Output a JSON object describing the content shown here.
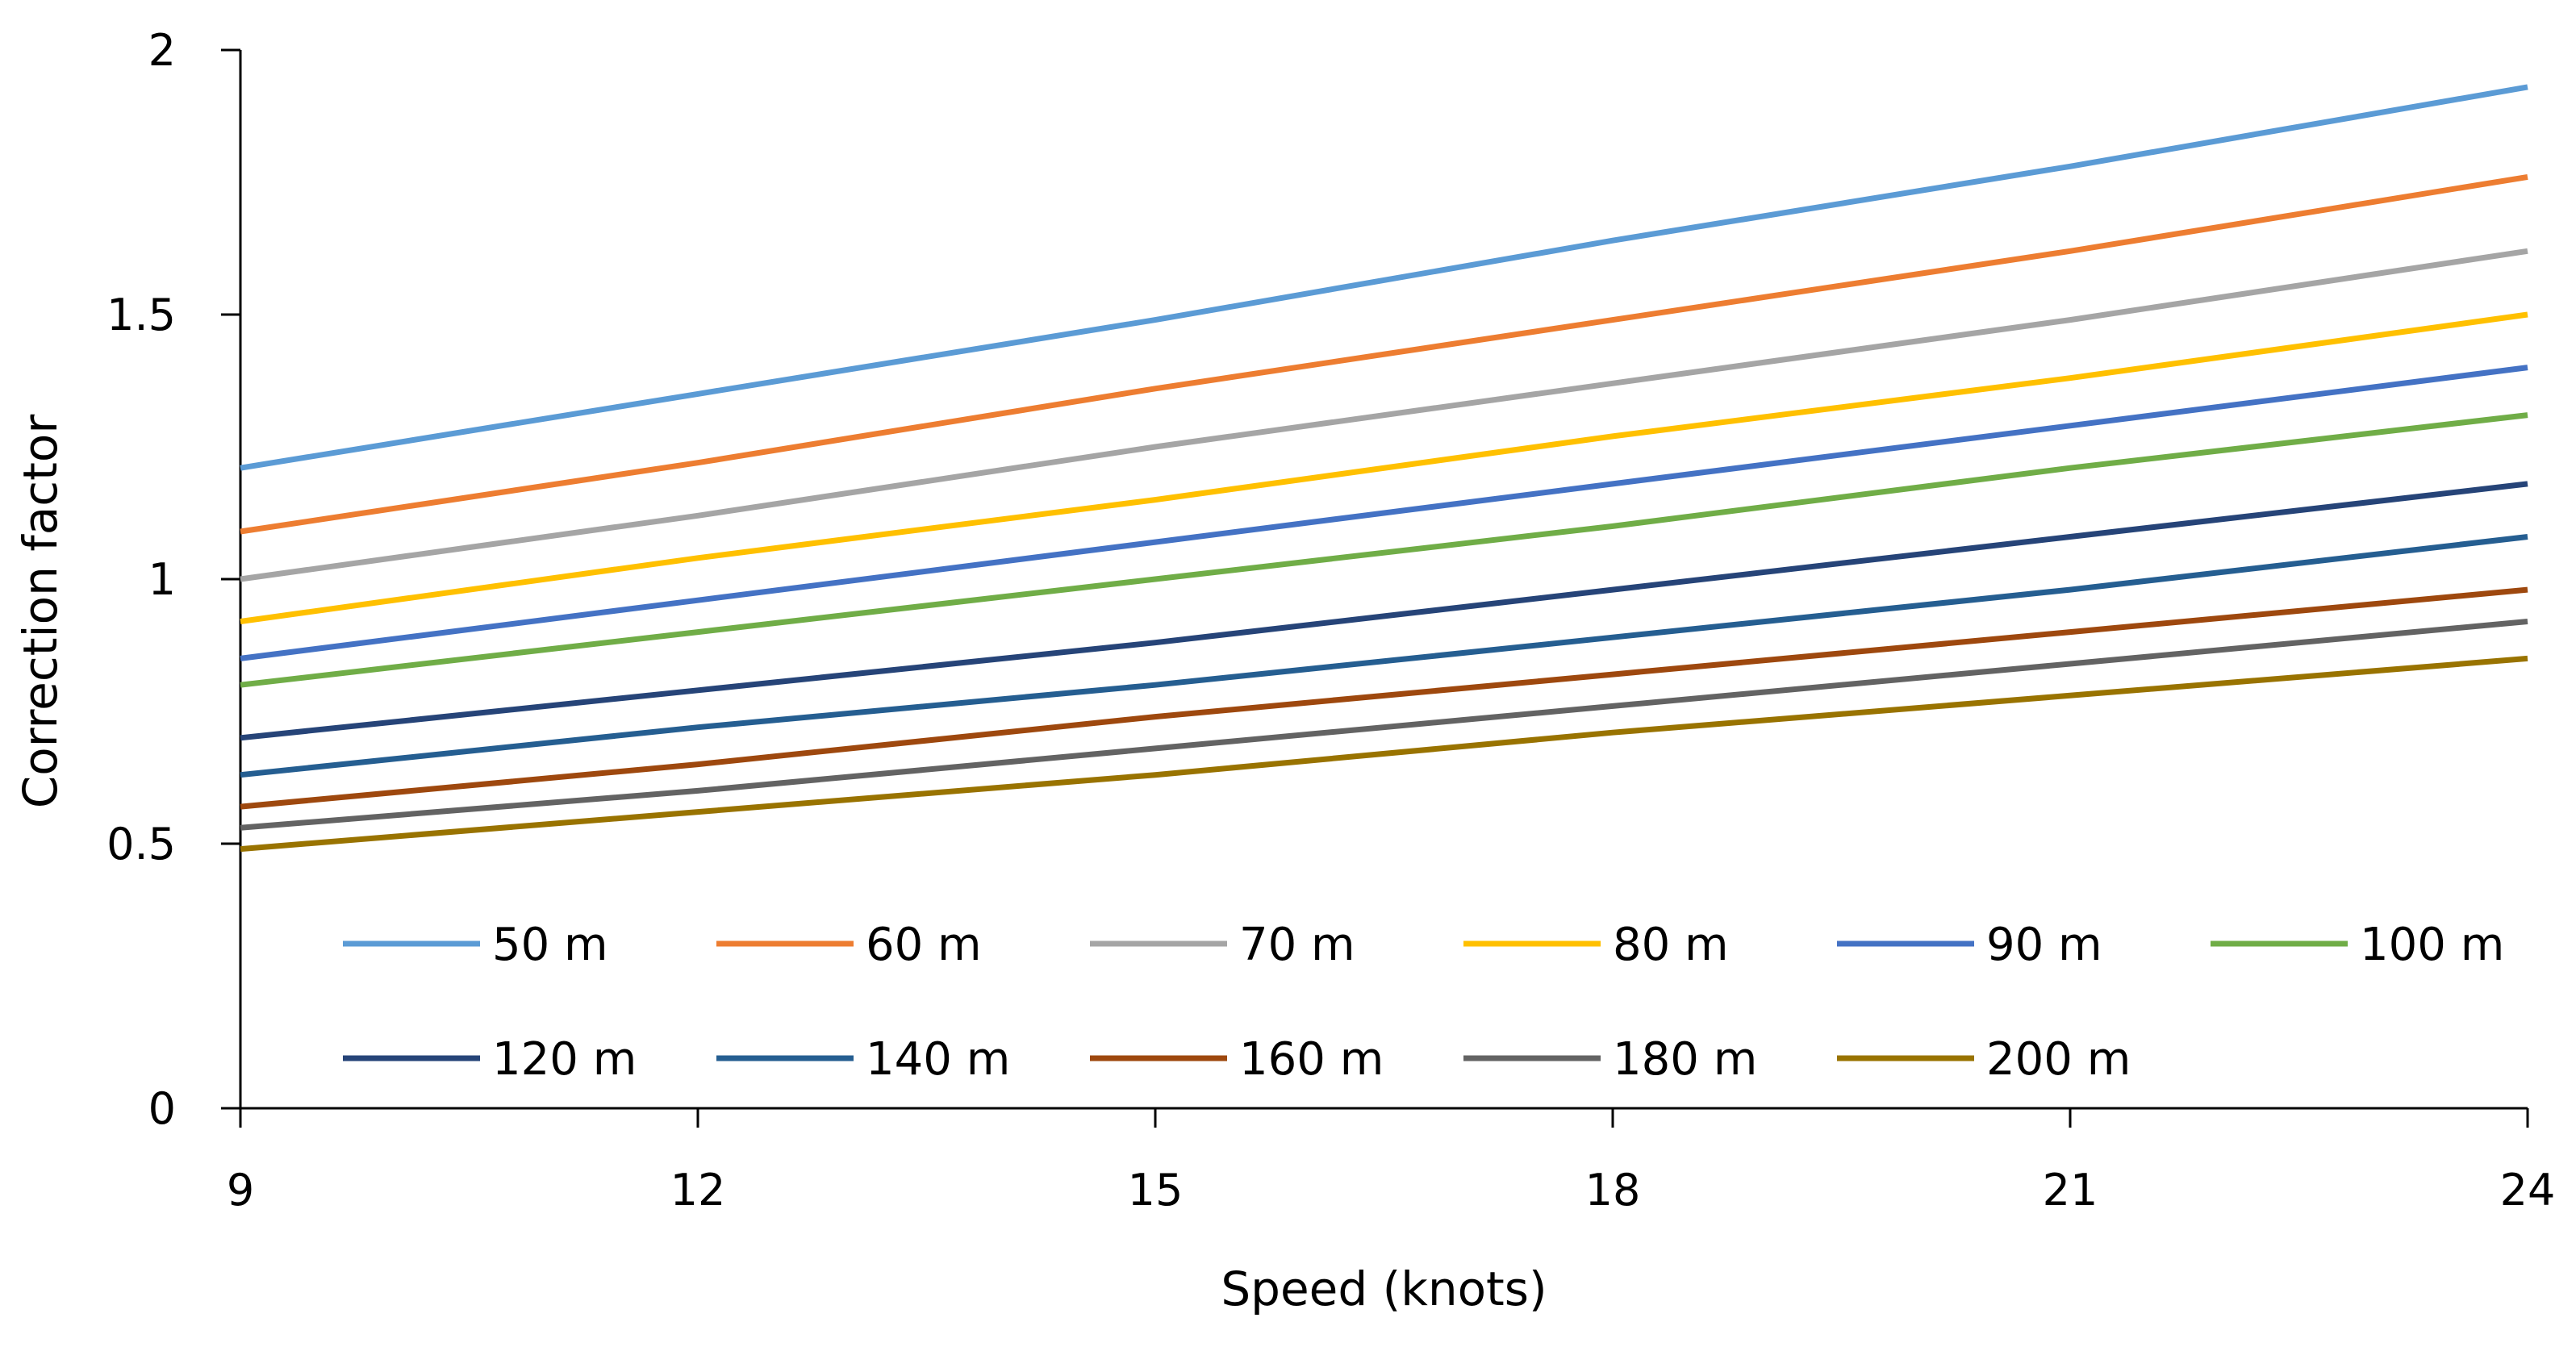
{
  "chart_data": {
    "type": "line",
    "title": "",
    "xlabel": "Speed (knots)",
    "ylabel": "Correction factor",
    "xlim": [
      9,
      24
    ],
    "ylim": [
      0,
      2
    ],
    "x_ticks": [
      9,
      12,
      15,
      18,
      21,
      24
    ],
    "x_tick_labels": [
      "9",
      "12",
      "15",
      "18",
      "21",
      "24"
    ],
    "y_ticks": [
      0,
      0.5,
      1,
      1.5,
      2
    ],
    "y_tick_labels": [
      "0",
      "0.5",
      "1",
      "1.5",
      "2"
    ],
    "grid": false,
    "legend_position": "lower-inside",
    "x": [
      9,
      12,
      15,
      18,
      21,
      24
    ],
    "series": [
      {
        "name": "50 m",
        "color": "#5B9BD5",
        "values": [
          1.21,
          1.35,
          1.49,
          1.64,
          1.78,
          1.93
        ]
      },
      {
        "name": "60 m",
        "color": "#ED7D31",
        "values": [
          1.09,
          1.22,
          1.36,
          1.49,
          1.62,
          1.76
        ]
      },
      {
        "name": "70 m",
        "color": "#A5A5A5",
        "values": [
          1.0,
          1.12,
          1.25,
          1.37,
          1.49,
          1.62
        ]
      },
      {
        "name": "80 m",
        "color": "#FFC000",
        "values": [
          0.92,
          1.04,
          1.15,
          1.27,
          1.38,
          1.5
        ]
      },
      {
        "name": "90 m",
        "color": "#4472C4",
        "values": [
          0.85,
          0.96,
          1.07,
          1.18,
          1.29,
          1.4
        ]
      },
      {
        "name": "100 m",
        "color": "#70AD47",
        "values": [
          0.8,
          0.9,
          1.0,
          1.1,
          1.21,
          1.31
        ]
      },
      {
        "name": "120 m",
        "color": "#264478",
        "values": [
          0.7,
          0.79,
          0.88,
          0.98,
          1.08,
          1.18
        ]
      },
      {
        "name": "140 m",
        "color": "#255E91",
        "values": [
          0.63,
          0.72,
          0.8,
          0.89,
          0.98,
          1.08
        ]
      },
      {
        "name": "160 m",
        "color": "#9E480E",
        "values": [
          0.57,
          0.65,
          0.74,
          0.82,
          0.9,
          0.98
        ]
      },
      {
        "name": "180 m",
        "color": "#636363",
        "values": [
          0.53,
          0.6,
          0.68,
          0.76,
          0.84,
          0.92
        ]
      },
      {
        "name": "200 m",
        "color": "#997300",
        "values": [
          0.49,
          0.56,
          0.63,
          0.71,
          0.78,
          0.85
        ]
      }
    ]
  }
}
